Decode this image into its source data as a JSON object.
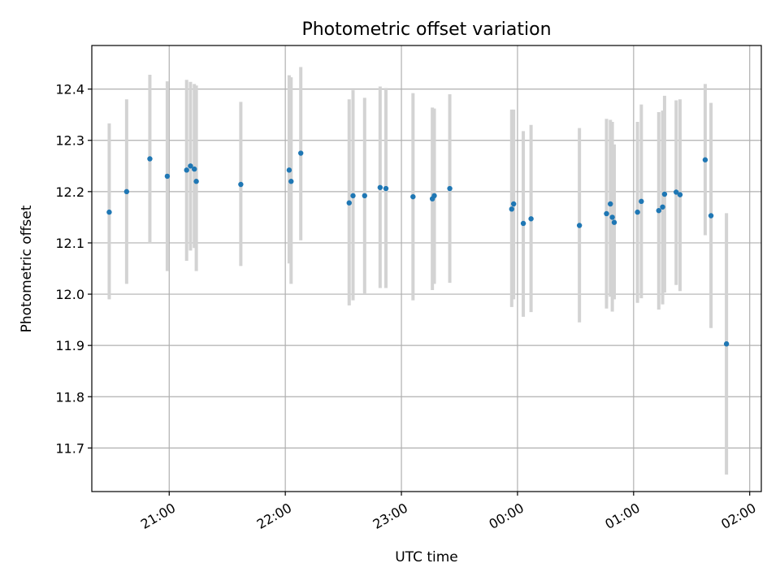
{
  "chart_data": {
    "type": "scatter",
    "title": "Photometric offset variation",
    "xlabel": "UTC time",
    "ylabel": "Photometric offset",
    "x_unit": "time (HH:MM, UTC)",
    "xlim": [
      "20:20",
      "02:06"
    ],
    "ylim": [
      11.615,
      12.485
    ],
    "x_ticks": [
      "21:00",
      "22:00",
      "23:00",
      "00:00",
      "01:00",
      "02:00"
    ],
    "y_ticks": [
      11.7,
      11.8,
      11.9,
      12.0,
      12.1,
      12.2,
      12.3,
      12.4
    ],
    "grid": true,
    "point_color": "#1f77b4",
    "errorbar_color": "#d3d3d3",
    "points": [
      {
        "t": "20:29",
        "y": 12.16,
        "lo": 11.99,
        "hi": 12.333
      },
      {
        "t": "20:38",
        "y": 12.2,
        "lo": 12.02,
        "hi": 12.38
      },
      {
        "t": "20:50",
        "y": 12.264,
        "lo": 12.1,
        "hi": 12.428
      },
      {
        "t": "20:59",
        "y": 12.23,
        "lo": 12.045,
        "hi": 12.415
      },
      {
        "t": "21:09",
        "y": 12.242,
        "lo": 12.065,
        "hi": 12.418
      },
      {
        "t": "21:11",
        "y": 12.25,
        "lo": 12.085,
        "hi": 12.414
      },
      {
        "t": "21:13",
        "y": 12.244,
        "lo": 12.09,
        "hi": 12.41
      },
      {
        "t": "21:14",
        "y": 12.22,
        "lo": 12.045,
        "hi": 12.407
      },
      {
        "t": "21:37",
        "y": 12.214,
        "lo": 12.055,
        "hi": 12.375
      },
      {
        "t": "22:02",
        "y": 12.242,
        "lo": 12.06,
        "hi": 12.427
      },
      {
        "t": "22:03",
        "y": 12.22,
        "lo": 12.02,
        "hi": 12.423
      },
      {
        "t": "22:08",
        "y": 12.275,
        "lo": 12.105,
        "hi": 12.443
      },
      {
        "t": "22:33",
        "y": 12.178,
        "lo": 11.978,
        "hi": 12.38
      },
      {
        "t": "22:35",
        "y": 12.192,
        "lo": 11.988,
        "hi": 12.398
      },
      {
        "t": "22:41",
        "y": 12.192,
        "lo": 12.0,
        "hi": 12.383
      },
      {
        "t": "22:49",
        "y": 12.208,
        "lo": 12.012,
        "hi": 12.405
      },
      {
        "t": "22:52",
        "y": 12.206,
        "lo": 12.012,
        "hi": 12.402
      },
      {
        "t": "23:06",
        "y": 12.19,
        "lo": 11.988,
        "hi": 12.392
      },
      {
        "t": "23:16",
        "y": 12.186,
        "lo": 12.008,
        "hi": 12.364
      },
      {
        "t": "23:17",
        "y": 12.192,
        "lo": 12.02,
        "hi": 12.362
      },
      {
        "t": "23:25",
        "y": 12.206,
        "lo": 12.022,
        "hi": 12.39
      },
      {
        "t": "23:57",
        "y": 12.166,
        "lo": 11.975,
        "hi": 12.36
      },
      {
        "t": "23:58",
        "y": 12.176,
        "lo": 11.99,
        "hi": 12.36
      },
      {
        "t": "00:03",
        "y": 12.138,
        "lo": 11.956,
        "hi": 12.318
      },
      {
        "t": "00:07",
        "y": 12.147,
        "lo": 11.965,
        "hi": 12.33
      },
      {
        "t": "00:32",
        "y": 12.134,
        "lo": 11.945,
        "hi": 12.324
      },
      {
        "t": "00:46",
        "y": 12.157,
        "lo": 11.972,
        "hi": 12.342
      },
      {
        "t": "00:48",
        "y": 12.176,
        "lo": 11.995,
        "hi": 12.34
      },
      {
        "t": "00:49",
        "y": 12.15,
        "lo": 11.966,
        "hi": 12.336
      },
      {
        "t": "00:50",
        "y": 12.14,
        "lo": 11.99,
        "hi": 12.292
      },
      {
        "t": "01:02",
        "y": 12.16,
        "lo": 11.983,
        "hi": 12.336
      },
      {
        "t": "01:04",
        "y": 12.181,
        "lo": 11.992,
        "hi": 12.37
      },
      {
        "t": "01:13",
        "y": 12.163,
        "lo": 11.97,
        "hi": 12.355
      },
      {
        "t": "01:15",
        "y": 12.17,
        "lo": 11.98,
        "hi": 12.358
      },
      {
        "t": "01:16",
        "y": 12.195,
        "lo": 12.003,
        "hi": 12.387
      },
      {
        "t": "01:22",
        "y": 12.199,
        "lo": 12.018,
        "hi": 12.378
      },
      {
        "t": "01:24",
        "y": 12.194,
        "lo": 12.006,
        "hi": 12.38
      },
      {
        "t": "01:37",
        "y": 12.262,
        "lo": 12.115,
        "hi": 12.41
      },
      {
        "t": "01:40",
        "y": 12.153,
        "lo": 11.934,
        "hi": 12.373
      },
      {
        "t": "01:48",
        "y": 11.903,
        "lo": 11.648,
        "hi": 12.158
      }
    ]
  }
}
